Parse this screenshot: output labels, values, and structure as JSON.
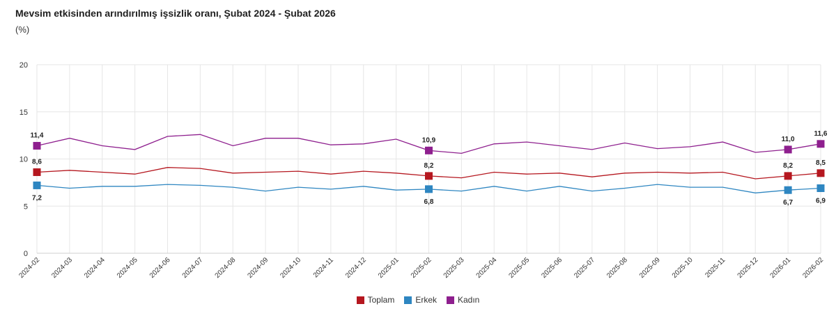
{
  "title": "Mevsim etkisinden arındırılmış işsizlik oranı, Şubat 2024 - Şubat 2026",
  "unit": "(%)",
  "chart_data": {
    "type": "line",
    "ylim": [
      0,
      20
    ],
    "yticks": [
      0,
      5,
      10,
      15,
      20
    ],
    "grid": true,
    "legend_position": "bottom",
    "categories": [
      "2024-02",
      "2024-03",
      "2024-04",
      "2024-05",
      "2024-06",
      "2024-07",
      "2024-08",
      "2024-09",
      "2024-10",
      "2024-11",
      "2024-12",
      "2025-01",
      "2025-02",
      "2025-03",
      "2025-04",
      "2025-05",
      "2025-06",
      "2025-07",
      "2025-08",
      "2025-09",
      "2025-10",
      "2025-11",
      "2025-12",
      "2026-01",
      "2026-02"
    ],
    "series": [
      {
        "name": "Toplam",
        "color": "#b5171f",
        "values": [
          8.6,
          8.8,
          8.6,
          8.4,
          9.1,
          9.0,
          8.5,
          8.6,
          8.7,
          8.4,
          8.7,
          8.5,
          8.2,
          8.0,
          8.6,
          8.4,
          8.5,
          8.1,
          8.5,
          8.6,
          8.5,
          8.6,
          7.9,
          8.2,
          8.5
        ]
      },
      {
        "name": "Erkek",
        "color": "#2e86c1",
        "values": [
          7.2,
          6.9,
          7.1,
          7.1,
          7.3,
          7.2,
          7.0,
          6.6,
          7.0,
          6.8,
          7.1,
          6.7,
          6.8,
          6.6,
          7.1,
          6.6,
          7.1,
          6.6,
          6.9,
          7.3,
          7.0,
          7.0,
          6.4,
          6.7,
          6.9
        ]
      },
      {
        "name": "Kadın",
        "color": "#8e1f8e",
        "values": [
          11.4,
          12.2,
          11.4,
          11.0,
          12.4,
          12.6,
          11.4,
          12.2,
          12.2,
          11.5,
          11.6,
          12.1,
          10.9,
          10.6,
          11.6,
          11.8,
          11.4,
          11.0,
          11.7,
          11.1,
          11.3,
          11.8,
          10.7,
          11.0,
          11.6
        ]
      }
    ],
    "highlighted_indices": [
      0,
      12,
      23,
      24
    ],
    "data_labels": [
      {
        "series": 2,
        "index": 0,
        "text": "11,4"
      },
      {
        "series": 0,
        "index": 0,
        "text": "8,6"
      },
      {
        "series": 1,
        "index": 0,
        "text": "7,2"
      },
      {
        "series": 2,
        "index": 12,
        "text": "10,9"
      },
      {
        "series": 0,
        "index": 12,
        "text": "8,2"
      },
      {
        "series": 1,
        "index": 12,
        "text": "6,8"
      },
      {
        "series": 2,
        "index": 23,
        "text": "11,0"
      },
      {
        "series": 0,
        "index": 23,
        "text": "8,2"
      },
      {
        "series": 1,
        "index": 23,
        "text": "6,7"
      },
      {
        "series": 2,
        "index": 24,
        "text": "11,6"
      },
      {
        "series": 0,
        "index": 24,
        "text": "8,5"
      },
      {
        "series": 1,
        "index": 24,
        "text": "6,9"
      }
    ]
  }
}
